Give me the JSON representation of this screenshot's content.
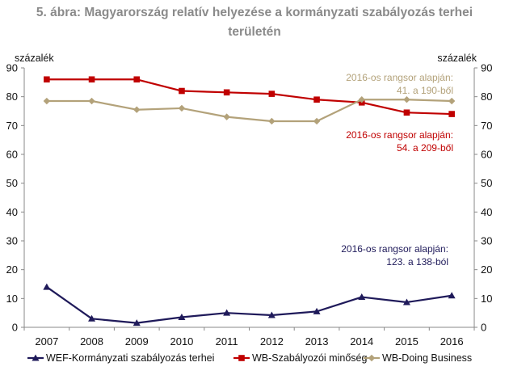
{
  "title_line1": "5. ábra: Magyarország relatív helyezése a kormányzati szabályozás terhei",
  "title_line2": "területén",
  "chart_data": {
    "type": "line",
    "x": [
      "2007",
      "2008",
      "2009",
      "2010",
      "2011",
      "2012",
      "2013",
      "2014",
      "2015",
      "2016"
    ],
    "ylim": [
      0,
      90
    ],
    "yticks": [
      0,
      10,
      20,
      30,
      40,
      50,
      60,
      70,
      80,
      90
    ],
    "ylabel_left": "százalék",
    "ylabel_right": "százalék",
    "grid": false,
    "legend_position": "bottom",
    "series": [
      {
        "name": "WEF-Kormányzati szabályozás terhei",
        "color": "#1f1a5a",
        "marker": "triangle",
        "values": [
          14,
          3,
          1.5,
          3.5,
          5,
          4.2,
          5.5,
          10.5,
          8.7,
          11
        ]
      },
      {
        "name": "WB-Szabályozói minőség",
        "color": "#c00000",
        "marker": "square",
        "values": [
          86,
          86,
          86,
          82,
          81.5,
          81,
          79,
          78,
          74.5,
          74
        ]
      },
      {
        "name": "WB-Doing Business",
        "color": "#b3a27a",
        "marker": "diamond",
        "values": [
          78.5,
          78.5,
          75.5,
          76,
          73,
          71.5,
          71.5,
          79,
          79,
          78.5
        ]
      }
    ],
    "annotations": [
      {
        "series": 2,
        "line1": "2016-os rangsor alapján:",
        "line2": "41. a 190-ből",
        "color": "#b3a27a"
      },
      {
        "series": 1,
        "line1": "2016-os rangsor alapján:",
        "line2": "54. a 209-ből",
        "color": "#c00000"
      },
      {
        "series": 0,
        "line1": "2016-os rangsor alapján:",
        "line2": "123. a 138-ból",
        "color": "#1f1a5a"
      }
    ]
  }
}
